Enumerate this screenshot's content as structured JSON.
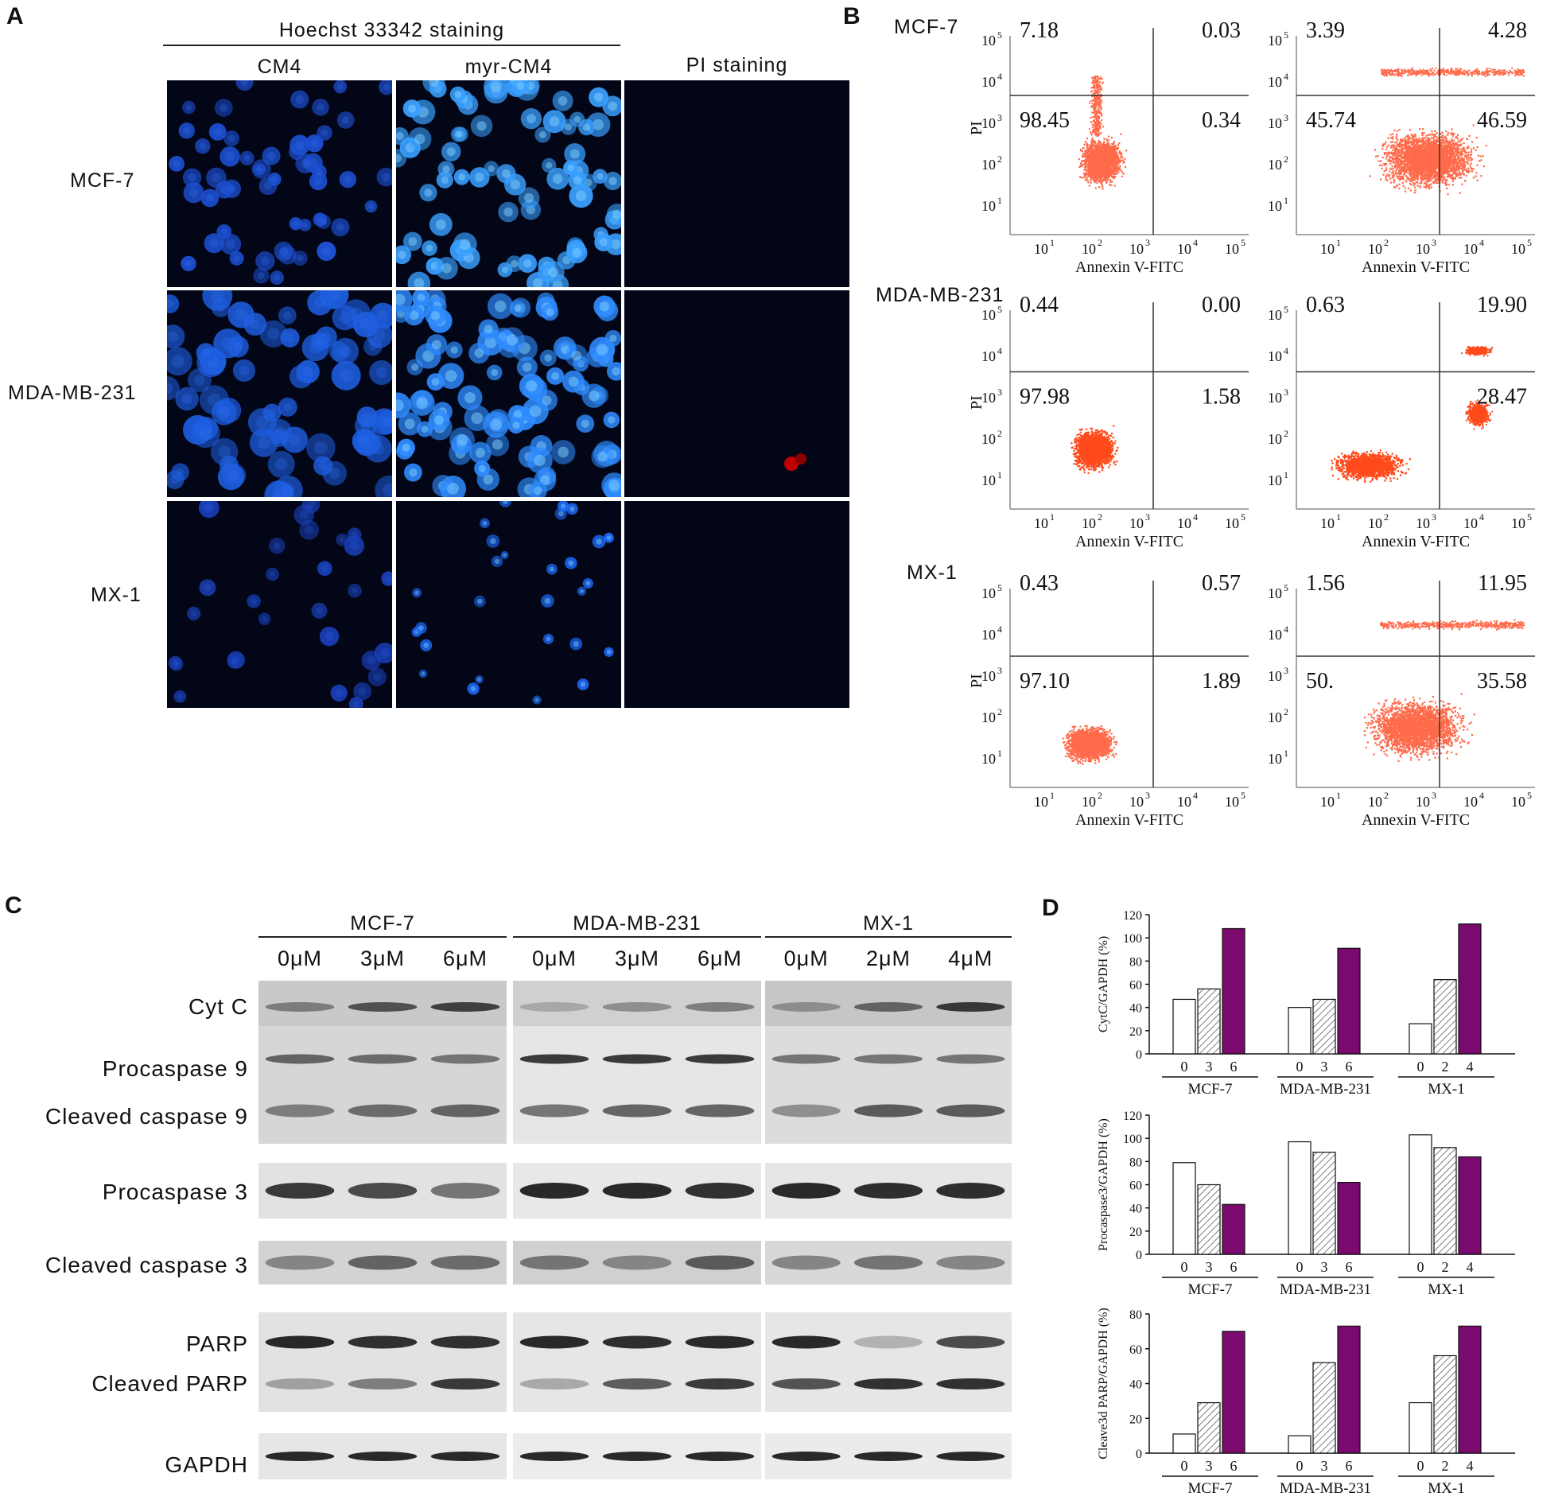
{
  "panels": {
    "a": "A",
    "b": "B",
    "c": "C",
    "d": "D"
  },
  "panel_a": {
    "header": "Hoechst 33342 staining",
    "columns": [
      "CM4",
      "myr-CM4",
      "PI staining"
    ],
    "rows": [
      "MCF-7",
      "MDA-MB-231",
      "MX-1"
    ]
  },
  "panel_b": {
    "xlabel": "Annexin V-FITC",
    "ylabel": "PI",
    "ticks": [
      "10",
      "10",
      "10",
      "10",
      "10"
    ],
    "tick_exps": [
      "1",
      "2",
      "3",
      "4",
      "5"
    ],
    "rows": [
      {
        "label": "MCF-7",
        "plots": [
          {
            "ul": "7.18",
            "ur": "0.03",
            "ll": "98.45",
            "lr": "0.34"
          },
          {
            "ul": "3.39",
            "ur": "4.28",
            "ll": "45.74",
            "lr": "46.59"
          }
        ]
      },
      {
        "label": "MDA-MB-231",
        "plots": [
          {
            "ul": "0.44",
            "ur": "0.00",
            "ll": "97.98",
            "lr": "1.58"
          },
          {
            "ul": "0.63",
            "ur": "19.90",
            "ll": "",
            "lr": "28.47"
          }
        ]
      },
      {
        "label": "MX-1",
        "plots": [
          {
            "ul": "0.43",
            "ur": "0.57",
            "ll": "97.10",
            "lr": "1.89"
          },
          {
            "ul": "1.56",
            "ur": "11.95",
            "ll": "50.",
            "lr": "35.58"
          }
        ]
      }
    ]
  },
  "panel_c": {
    "groups": [
      {
        "name": "MCF-7",
        "doses": [
          "0μM",
          "3μM",
          "6μM"
        ]
      },
      {
        "name": "MDA-MB-231",
        "doses": [
          "0μM",
          "3μM",
          "6μM"
        ]
      },
      {
        "name": "MX-1",
        "doses": [
          "0μM",
          "2μM",
          "4μM"
        ]
      }
    ],
    "proteins": [
      "Cyt C",
      "Procaspase 9",
      "Cleaved caspase 9",
      "Procaspase 3",
      "Cleaved caspase 3",
      "PARP",
      "Cleaved PARP",
      "GAPDH"
    ]
  },
  "colors": {
    "control": "#ffffff",
    "mid": "hatched",
    "high": "#7b0a6e"
  },
  "chart_data": [
    {
      "type": "bar",
      "ylabel": "CytC/GAPDH (%)",
      "ylim": [
        0,
        120
      ],
      "yticks": [
        0,
        20,
        40,
        60,
        80,
        100,
        120
      ],
      "groups": [
        {
          "name": "MCF-7",
          "categories": [
            "0",
            "3",
            "6"
          ],
          "values": [
            47,
            56,
            108
          ]
        },
        {
          "name": "MDA-MB-231",
          "categories": [
            "0",
            "3",
            "6"
          ],
          "values": [
            40,
            47,
            91
          ]
        },
        {
          "name": "MX-1",
          "categories": [
            "0",
            "2",
            "4"
          ],
          "values": [
            26,
            64,
            112
          ]
        }
      ]
    },
    {
      "type": "bar",
      "ylabel": "Procaspase3/GAPDH (%)",
      "ylim": [
        0,
        120
      ],
      "yticks": [
        0,
        20,
        40,
        60,
        80,
        100,
        120
      ],
      "groups": [
        {
          "name": "MCF-7",
          "categories": [
            "0",
            "3",
            "6"
          ],
          "values": [
            79,
            60,
            43
          ]
        },
        {
          "name": "MDA-MB-231",
          "categories": [
            "0",
            "3",
            "6"
          ],
          "values": [
            97,
            88,
            62
          ]
        },
        {
          "name": "MX-1",
          "categories": [
            "0",
            "2",
            "4"
          ],
          "values": [
            103,
            92,
            84
          ]
        }
      ]
    },
    {
      "type": "bar",
      "ylabel": "Cleave3d PARP/GAPDH (%)",
      "ylim": [
        0,
        80
      ],
      "yticks": [
        0,
        20,
        40,
        60,
        80
      ],
      "groups": [
        {
          "name": "MCF-7",
          "categories": [
            "0",
            "3",
            "6"
          ],
          "values": [
            11,
            29,
            70
          ]
        },
        {
          "name": "MDA-MB-231",
          "categories": [
            "0",
            "3",
            "6"
          ],
          "values": [
            10,
            52,
            73
          ]
        },
        {
          "name": "MX-1",
          "categories": [
            "0",
            "2",
            "4"
          ],
          "values": [
            29,
            56,
            73
          ]
        }
      ]
    }
  ]
}
